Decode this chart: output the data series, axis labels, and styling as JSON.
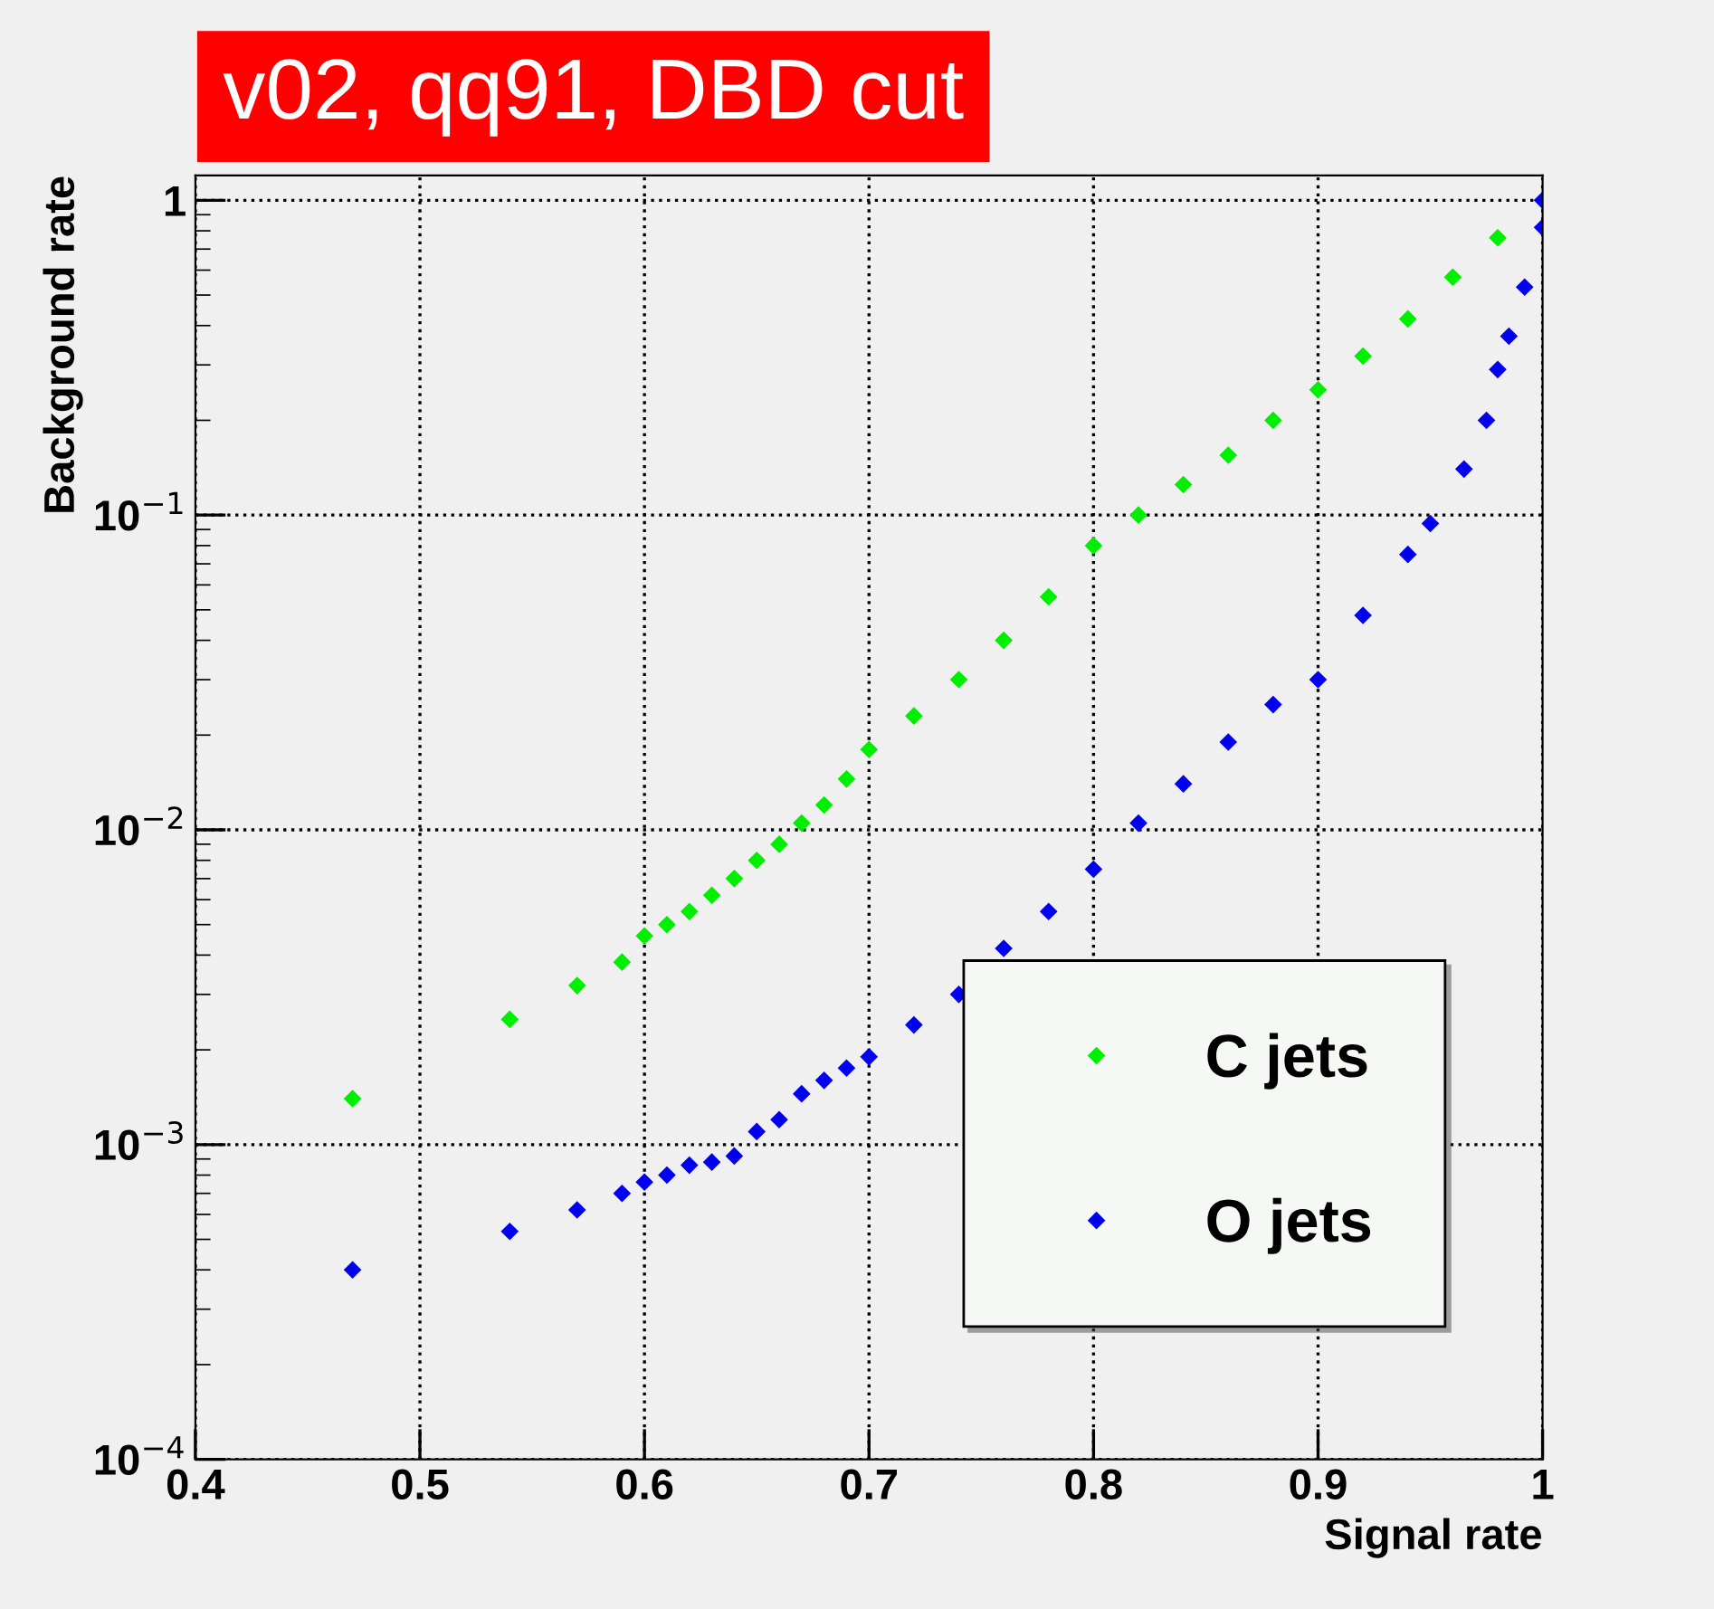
{
  "chart_data": {
    "type": "scatter",
    "title": "v02, qq91, DBD cut",
    "xlabel": "Signal rate",
    "ylabel": "Background rate",
    "log": "y",
    "grid": true,
    "legend": "bottom right",
    "marker": "diamond",
    "xlim": [
      0.4,
      1.0
    ],
    "xticks": [
      {
        "value": 0.4,
        "label": "0.4"
      },
      {
        "value": 0.5,
        "label": "0.5"
      },
      {
        "value": 0.6,
        "label": "0.6"
      },
      {
        "value": 0.7,
        "label": "0.7"
      },
      {
        "value": 0.8,
        "label": "0.8"
      },
      {
        "value": 0.9,
        "label": "0.9"
      },
      {
        "value": 1.0,
        "label": "1"
      }
    ],
    "ylim": [
      0.0001,
      1.2
    ],
    "yticks": [
      {
        "value": 0.0001,
        "label": "10$^{−4}$"
      },
      {
        "value": 0.001,
        "label": "10$^{−3}$"
      },
      {
        "value": 0.01,
        "label": "10$^{−2}$"
      },
      {
        "value": 0.1,
        "label": "10$^{−1}$"
      },
      {
        "value": 1,
        "label": "1"
      }
    ],
    "series": [
      {
        "name": "C jets",
        "color": "#00ee00",
        "x": [
          0.47,
          0.54,
          0.57,
          0.59,
          0.6,
          0.61,
          0.62,
          0.63,
          0.64,
          0.65,
          0.66,
          0.67,
          0.68,
          0.69,
          0.7,
          0.72,
          0.74,
          0.76,
          0.78,
          0.8,
          0.82,
          0.84,
          0.86,
          0.88,
          0.9,
          0.92,
          0.94,
          0.96,
          0.98
        ],
        "values": [
          0.0014,
          0.0025,
          0.0032,
          0.0038,
          0.0046,
          0.005,
          0.0055,
          0.0062,
          0.007,
          0.008,
          0.009,
          0.0105,
          0.012,
          0.0145,
          0.018,
          0.023,
          0.03,
          0.04,
          0.055,
          0.08,
          0.1,
          0.125,
          0.155,
          0.2,
          0.25,
          0.32,
          0.42,
          0.57,
          0.76
        ]
      },
      {
        "name": "O jets",
        "color": "#0000ee",
        "x": [
          0.47,
          0.54,
          0.57,
          0.59,
          0.6,
          0.61,
          0.62,
          0.63,
          0.64,
          0.65,
          0.66,
          0.67,
          0.68,
          0.69,
          0.7,
          0.72,
          0.74,
          0.76,
          0.78,
          0.8,
          0.82,
          0.84,
          0.86,
          0.88,
          0.9,
          0.92,
          0.94,
          0.95,
          0.965,
          0.975,
          0.98,
          0.985,
          0.992,
          1.0,
          1.0
        ],
        "values": [
          0.0004,
          0.00053,
          0.00062,
          0.0007,
          0.00076,
          0.0008,
          0.00086,
          0.00088,
          0.00092,
          0.0011,
          0.0012,
          0.00145,
          0.0016,
          0.00175,
          0.0019,
          0.0024,
          0.003,
          0.0042,
          0.0055,
          0.0075,
          0.0105,
          0.014,
          0.019,
          0.025,
          0.03,
          0.048,
          0.075,
          0.094,
          0.14,
          0.2,
          0.29,
          0.37,
          0.53,
          0.82,
          1.0
        ]
      }
    ]
  }
}
